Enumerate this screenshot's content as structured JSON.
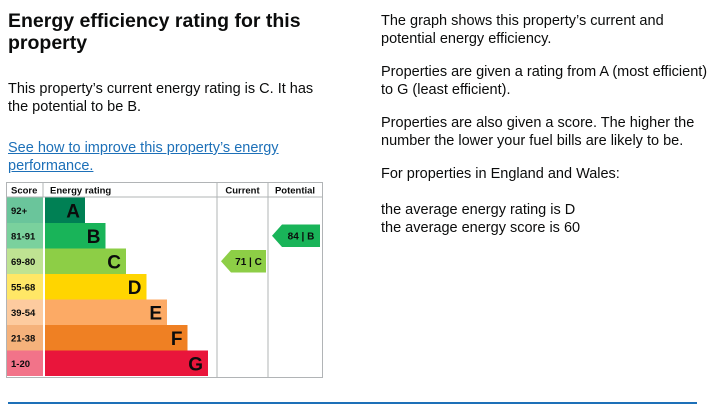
{
  "heading": "Energy efficiency rating for this property",
  "current_text": "This property’s current energy rating is C. It has the potential to be B.",
  "improve_link": "See how to improve this property’s energy performance.",
  "info": {
    "graph_description": "The graph shows this property’s current and potential energy efficiency.",
    "rating_range": "Properties are given a rating from A (most efficient) to G (least efficient).",
    "score_description": "Properties are also given a score. The higher the number the lower your fuel bills are likely to be.",
    "region_intro": "For properties in England and Wales:",
    "average_rating": "the average energy rating is D",
    "average_score": "the average energy score is 60"
  },
  "chart_data": {
    "type": "bar",
    "headers": {
      "score": "Score",
      "rating": "Energy rating",
      "current": "Current",
      "potential": "Potential"
    },
    "bands": [
      {
        "letter": "A",
        "range": "92+",
        "color": "#008054",
        "range_color": "#6ac59b"
      },
      {
        "letter": "B",
        "range": "81-91",
        "color": "#19b459",
        "range_color": "#7ad19d"
      },
      {
        "letter": "C",
        "range": "69-80",
        "color": "#8dce46",
        "range_color": "#bfe392"
      },
      {
        "letter": "D",
        "range": "55-68",
        "color": "#ffd500",
        "range_color": "#ffe766"
      },
      {
        "letter": "E",
        "range": "39-54",
        "color": "#fcaa65",
        "range_color": "#fdcb9f"
      },
      {
        "letter": "F",
        "range": "21-38",
        "color": "#ef8023",
        "range_color": "#f5b27b"
      },
      {
        "letter": "G",
        "range": "1-20",
        "color": "#e9153b",
        "range_color": "#f27389"
      }
    ],
    "current": {
      "score": 71,
      "band": "C",
      "label": "71 | C"
    },
    "potential": {
      "score": 84,
      "band": "B",
      "label": "84 | B"
    }
  }
}
